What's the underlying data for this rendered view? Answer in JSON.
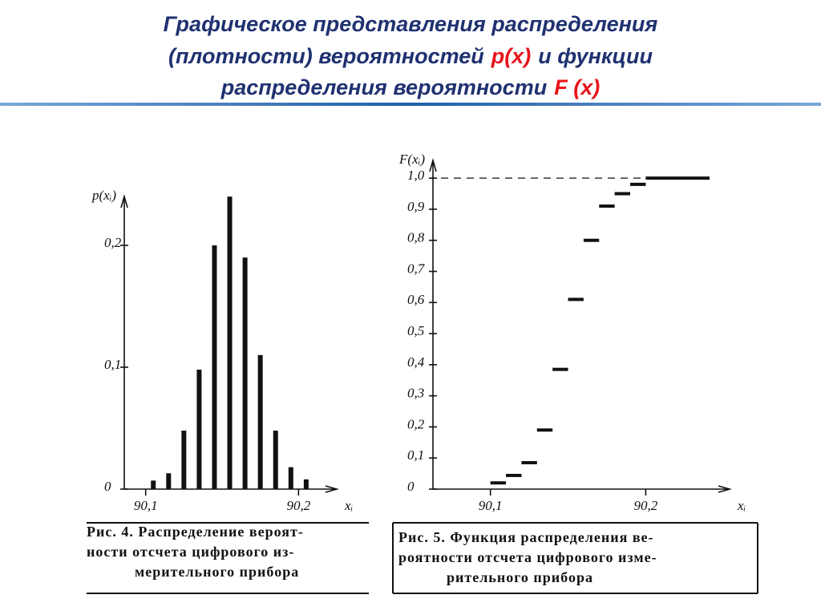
{
  "title_lines": [
    [
      {
        "text": "Графическое представления распределения",
        "color": "#1f3170"
      }
    ],
    [
      {
        "text": "(плотности) вероятностей",
        "color": "#1f3170"
      },
      {
        "text": "p(x)",
        "color": "#e8141b"
      },
      {
        "text": "и функции",
        "color": "#1f3170"
      }
    ],
    [
      {
        "text": "распределения вероятности",
        "color": "#1f3170"
      },
      {
        "text": "F (x)",
        "color": "#e8141b"
      }
    ]
  ],
  "chart_data": [
    {
      "type": "bar",
      "ylabel": "p(xᵢ)",
      "xlabel": "xᵢ",
      "color": "#111111",
      "x": [
        90.105,
        90.115,
        90.125,
        90.135,
        90.145,
        90.155,
        90.165,
        90.175,
        90.185,
        90.195,
        90.205
      ],
      "values": [
        0.007,
        0.013,
        0.048,
        0.098,
        0.2,
        0.24,
        0.19,
        0.11,
        0.048,
        0.018,
        0.008
      ],
      "xlim": [
        90.086,
        90.225
      ],
      "ylim": [
        0,
        0.25
      ],
      "xticks": [
        {
          "value": 90.1,
          "label": "90,1"
        },
        {
          "value": 90.2,
          "label": "90,2"
        }
      ],
      "yticks": [
        0,
        {
          "value": 0.1,
          "label": "0,1"
        },
        {
          "value": 0.2,
          "label": "0,2"
        }
      ],
      "caption": [
        "Рис. 4. Распределение вероят-",
        "ности отсчета цифрового из-",
        "мерительного прибора"
      ]
    },
    {
      "type": "step",
      "ylabel": "F(xᵢ)",
      "xlabel": "xᵢ",
      "color": "#111111",
      "x": [
        90.1,
        90.11,
        90.12,
        90.13,
        90.14,
        90.15,
        90.16,
        90.17,
        90.18,
        90.19,
        90.2
      ],
      "values": [
        0.02,
        0.044,
        0.085,
        0.19,
        0.385,
        0.61,
        0.8,
        0.91,
        0.95,
        0.98,
        1.0
      ],
      "xlim": [
        90.063,
        90.254
      ],
      "ylim": [
        0,
        1.07
      ],
      "xticks": [
        {
          "value": 90.1,
          "label": "90,1"
        },
        {
          "value": 90.2,
          "label": "90,2"
        }
      ],
      "yticks": [
        0,
        {
          "value": 0.1,
          "label": "0,1"
        },
        {
          "value": 0.2,
          "label": "0,2"
        },
        {
          "value": 0.3,
          "label": "0,3"
        },
        {
          "value": 0.4,
          "label": "0,4"
        },
        {
          "value": 0.5,
          "label": "0,5"
        },
        {
          "value": 0.6,
          "label": "0,6"
        },
        {
          "value": 0.7,
          "label": "0,7"
        },
        {
          "value": 0.8,
          "label": "0,8"
        },
        {
          "value": 0.9,
          "label": "0,9"
        },
        {
          "value": 1.0,
          "label": "1,0"
        }
      ],
      "caption": [
        "Рис. 5. Функция распределения ве-",
        "роятности отсчета цифрового изме-",
        "рительного прибора"
      ]
    }
  ]
}
